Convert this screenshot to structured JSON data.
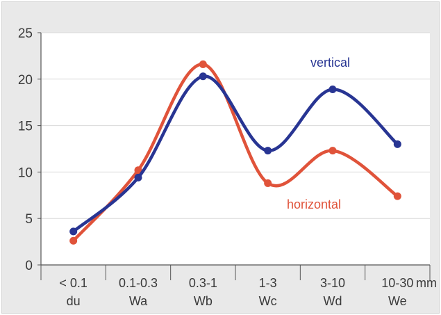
{
  "chart_data": {
    "type": "line",
    "categories": [
      {
        "top": "< 0.1",
        "bottom": "du"
      },
      {
        "top": "0.1-0.3",
        "bottom": "Wa"
      },
      {
        "top": "0.3-1",
        "bottom": "Wb"
      },
      {
        "top": "1-3",
        "bottom": "Wc"
      },
      {
        "top": "3-10",
        "bottom": "Wd"
      },
      {
        "top": "10-30",
        "bottom": "We"
      }
    ],
    "x_unit": "mm",
    "ylim": [
      0,
      25
    ],
    "yticks": [
      0,
      5,
      10,
      15,
      20,
      25
    ],
    "grid": true,
    "smooth": true,
    "series": [
      {
        "name": "vertical",
        "color": "#283593",
        "values": [
          3.6,
          9.4,
          20.3,
          12.3,
          18.9,
          13.0
        ]
      },
      {
        "name": "horizontal",
        "color": "#e0533a",
        "values": [
          2.6,
          10.2,
          21.6,
          8.8,
          12.3,
          7.4
        ]
      }
    ],
    "title": "",
    "xlabel": "",
    "ylabel": ""
  },
  "colors": {
    "frame_background": "#e9e9e9",
    "plot_background": "#ffffff",
    "gridline": "#d9d9d9",
    "axis": "#555555"
  }
}
